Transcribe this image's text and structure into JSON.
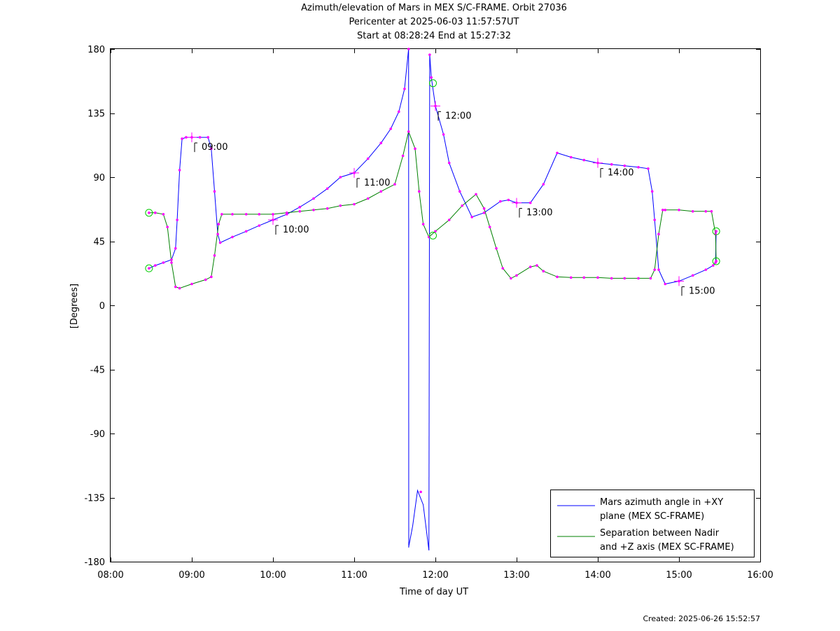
{
  "header": {
    "title_line1": "Azimuth/elevation of Mars in MEX S/C-FRAME.  Orbit 27036",
    "title_line2": "Pericenter at 2025-06-03 11:57:57UT",
    "title_line3": "Start at 08:28:24 End at 15:27:32"
  },
  "footer": {
    "created": "Created: 2025-06-26 15:52:57"
  },
  "colors": {
    "azimuth": "#0000ff",
    "separation": "#008000",
    "markers": "#ff00ff",
    "endpoints": "#00cc00"
  },
  "chart_data": {
    "type": "line",
    "title": "Azimuth/elevation of Mars in MEX S/C-FRAME.  Orbit 27036",
    "xlabel": "Time of day UT",
    "ylabel": "[Degrees]",
    "xlim": [
      8.0,
      16.0
    ],
    "ylim": [
      -180,
      180
    ],
    "x_ticks": [
      {
        "v": 8,
        "label": "08:00"
      },
      {
        "v": 9,
        "label": "09:00"
      },
      {
        "v": 10,
        "label": "10:00"
      },
      {
        "v": 11,
        "label": "11:00"
      },
      {
        "v": 12,
        "label": "12:00"
      },
      {
        "v": 13,
        "label": "13:00"
      },
      {
        "v": 14,
        "label": "14:00"
      },
      {
        "v": 15,
        "label": "15:00"
      },
      {
        "v": 16,
        "label": "16:00"
      }
    ],
    "y_ticks": [
      {
        "v": 180,
        "label": "180"
      },
      {
        "v": 135,
        "label": "135"
      },
      {
        "v": 90,
        "label": "90"
      },
      {
        "v": 45,
        "label": "45"
      },
      {
        "v": 0,
        "label": "0"
      },
      {
        "v": -45,
        "label": "-45"
      },
      {
        "v": -90,
        "label": "-90"
      },
      {
        "v": -135,
        "label": "-135"
      },
      {
        "v": -180,
        "label": "-180"
      }
    ],
    "grid": false,
    "legend_position": "bottom-right",
    "series": [
      {
        "name": "Mars azimuth angle in +XY plane (MEX SC-FRAME)",
        "legend_lines": [
          "Mars azimuth angle in +XY",
          "plane (MEX SC-FRAME)"
        ],
        "color": "#0000ff",
        "points": [
          [
            8.473,
            26
          ],
          [
            8.55,
            28
          ],
          [
            8.65,
            30
          ],
          [
            8.75,
            32
          ],
          [
            8.8,
            40
          ],
          [
            8.82,
            60
          ],
          [
            8.85,
            95
          ],
          [
            8.88,
            117
          ],
          [
            8.93,
            118
          ],
          [
            9.0,
            118
          ],
          [
            9.1,
            118
          ],
          [
            9.2,
            118
          ],
          [
            9.24,
            110
          ],
          [
            9.28,
            80
          ],
          [
            9.32,
            50
          ],
          [
            9.35,
            44
          ],
          [
            9.5,
            48
          ],
          [
            9.67,
            52
          ],
          [
            9.83,
            56
          ],
          [
            10.0,
            60
          ],
          [
            10.17,
            64
          ],
          [
            10.33,
            69
          ],
          [
            10.5,
            75
          ],
          [
            10.67,
            82
          ],
          [
            10.83,
            90
          ],
          [
            11.0,
            93
          ],
          [
            11.17,
            103
          ],
          [
            11.33,
            114
          ],
          [
            11.45,
            124
          ],
          [
            11.55,
            136
          ],
          [
            11.62,
            152
          ],
          [
            11.67,
            180
          ]
        ],
        "points_b": [
          [
            11.67,
            -170
          ],
          [
            11.72,
            -155
          ],
          [
            11.78,
            -130
          ],
          [
            11.85,
            -140
          ],
          [
            11.92,
            -172
          ]
        ],
        "points_c": [
          [
            11.93,
            176
          ],
          [
            11.95,
            160
          ],
          [
            12.0,
            140
          ],
          [
            12.1,
            120
          ],
          [
            12.17,
            100
          ],
          [
            12.3,
            80
          ],
          [
            12.45,
            62
          ],
          [
            12.6,
            65
          ],
          [
            12.8,
            73
          ],
          [
            12.9,
            74
          ],
          [
            13.0,
            72
          ],
          [
            13.17,
            72
          ],
          [
            13.33,
            85
          ],
          [
            13.5,
            107
          ],
          [
            13.67,
            104
          ],
          [
            13.83,
            102
          ],
          [
            14.0,
            100
          ],
          [
            14.17,
            99
          ],
          [
            14.33,
            98
          ],
          [
            14.5,
            97
          ],
          [
            14.62,
            96
          ],
          [
            14.67,
            80
          ],
          [
            14.7,
            60
          ],
          [
            14.75,
            25
          ],
          [
            14.83,
            15
          ],
          [
            15.0,
            17
          ],
          [
            15.17,
            21
          ],
          [
            15.33,
            25
          ],
          [
            15.42,
            28
          ],
          [
            15.45,
            30
          ],
          [
            15.458,
            52
          ]
        ]
      },
      {
        "name": "Separation between Nadir and +Z axis (MEX SC-FRAME)",
        "legend_lines": [
          "Separation between Nadir",
          "and +Z axis (MEX SC-FRAME)"
        ],
        "color": "#008000",
        "points": [
          [
            8.473,
            65
          ],
          [
            8.55,
            65
          ],
          [
            8.65,
            64
          ],
          [
            8.7,
            55
          ],
          [
            8.75,
            30
          ],
          [
            8.8,
            13
          ],
          [
            8.85,
            12
          ],
          [
            9.0,
            15
          ],
          [
            9.17,
            18
          ],
          [
            9.24,
            20
          ],
          [
            9.28,
            35
          ],
          [
            9.33,
            57
          ],
          [
            9.37,
            64
          ],
          [
            9.5,
            64
          ],
          [
            9.67,
            64
          ],
          [
            9.83,
            64
          ],
          [
            10.0,
            64
          ],
          [
            10.17,
            65
          ],
          [
            10.33,
            66
          ],
          [
            10.5,
            67
          ],
          [
            10.67,
            68
          ],
          [
            10.83,
            70
          ],
          [
            11.0,
            71
          ],
          [
            11.17,
            75
          ],
          [
            11.33,
            80
          ],
          [
            11.5,
            85
          ],
          [
            11.6,
            105
          ],
          [
            11.67,
            122
          ],
          [
            11.75,
            110
          ],
          [
            11.8,
            80
          ],
          [
            11.85,
            57
          ],
          [
            11.92,
            48
          ],
          [
            12.0,
            52
          ],
          [
            12.17,
            60
          ],
          [
            12.33,
            70
          ],
          [
            12.5,
            78
          ],
          [
            12.6,
            68
          ],
          [
            12.67,
            55
          ],
          [
            12.75,
            40
          ],
          [
            12.83,
            26
          ],
          [
            12.93,
            19
          ],
          [
            13.0,
            21
          ],
          [
            13.17,
            27
          ],
          [
            13.25,
            28
          ],
          [
            13.33,
            24
          ],
          [
            13.5,
            20
          ],
          [
            13.67,
            19.5
          ],
          [
            13.83,
            19.5
          ],
          [
            14.0,
            19.5
          ],
          [
            14.17,
            19
          ],
          [
            14.33,
            19
          ],
          [
            14.5,
            19
          ],
          [
            14.65,
            19
          ],
          [
            14.7,
            25
          ],
          [
            14.75,
            50
          ],
          [
            14.8,
            67
          ],
          [
            14.83,
            67
          ],
          [
            15.0,
            67
          ],
          [
            15.17,
            66
          ],
          [
            15.33,
            66
          ],
          [
            15.4,
            66
          ],
          [
            15.45,
            50
          ],
          [
            15.458,
            31
          ]
        ]
      }
    ],
    "hour_annotations": [
      {
        "x": 9.0,
        "y": 118,
        "label": "09:00"
      },
      {
        "x": 10.0,
        "y": 60,
        "label": "10:00"
      },
      {
        "x": 11.0,
        "y": 93,
        "label": "11:00"
      },
      {
        "x": 12.0,
        "y": 140,
        "label": "12:00"
      },
      {
        "x": 13.0,
        "y": 72,
        "label": "13:00"
      },
      {
        "x": 14.0,
        "y": 100,
        "label": "14:00"
      },
      {
        "x": 15.0,
        "y": 17,
        "label": "15:00"
      }
    ]
  }
}
